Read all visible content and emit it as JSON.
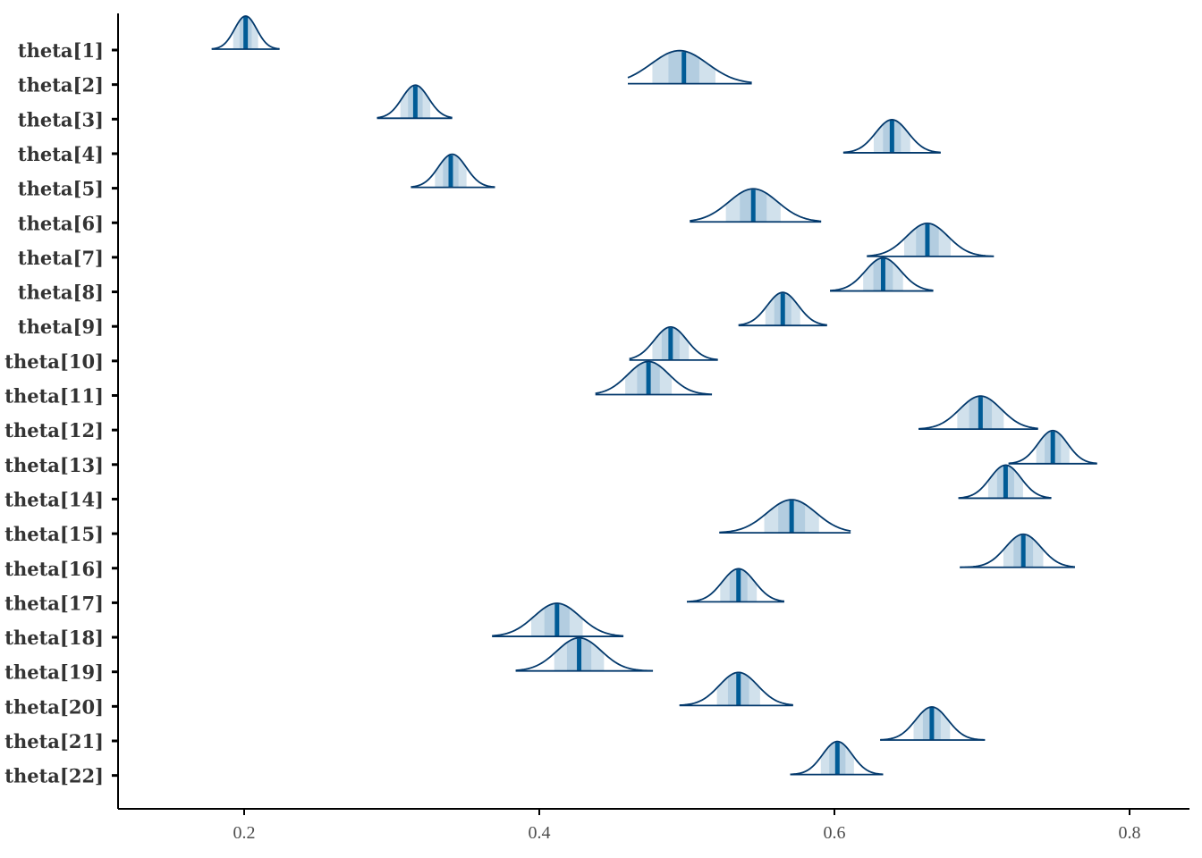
{
  "chart_data": {
    "type": "ridgeline",
    "title": "",
    "xlabel": "",
    "ylabel": "",
    "xlim": [
      0.115,
      0.84
    ],
    "x_ticks": [
      0.2,
      0.4,
      0.6,
      0.8
    ],
    "x_tick_labels": [
      "0.2",
      "0.4",
      "0.6",
      "0.8"
    ],
    "grid": false,
    "legend": "none",
    "colors": {
      "outline": "#03396c",
      "median_line": "#005b96",
      "inner_fill": "#b3cde0",
      "outer_fill": "#d1e1ec",
      "axis": "#000000"
    },
    "series": [
      {
        "name": "theta[1]",
        "median": 0.201,
        "mode": 0.201,
        "sd": 0.0075,
        "lower": 0.178,
        "upper": 0.224
      },
      {
        "name": "theta[2]",
        "median": 0.498,
        "mode": 0.495,
        "sd": 0.019,
        "lower": 0.46,
        "upper": 0.544
      },
      {
        "name": "theta[3]",
        "median": 0.316,
        "mode": 0.316,
        "sd": 0.009,
        "lower": 0.29,
        "upper": 0.341
      },
      {
        "name": "theta[4]",
        "median": 0.639,
        "mode": 0.639,
        "sd": 0.011,
        "lower": 0.606,
        "upper": 0.672
      },
      {
        "name": "theta[5]",
        "median": 0.34,
        "mode": 0.341,
        "sd": 0.0095,
        "lower": 0.313,
        "upper": 0.37
      },
      {
        "name": "theta[6]",
        "median": 0.545,
        "mode": 0.545,
        "sd": 0.0165,
        "lower": 0.502,
        "upper": 0.591
      },
      {
        "name": "theta[7]",
        "median": 0.663,
        "mode": 0.663,
        "sd": 0.014,
        "lower": 0.622,
        "upper": 0.708
      },
      {
        "name": "theta[8]",
        "median": 0.633,
        "mode": 0.633,
        "sd": 0.012,
        "lower": 0.597,
        "upper": 0.667
      },
      {
        "name": "theta[9]",
        "median": 0.565,
        "mode": 0.565,
        "sd": 0.0105,
        "lower": 0.535,
        "upper": 0.595
      },
      {
        "name": "theta[10]",
        "median": 0.489,
        "mode": 0.489,
        "sd": 0.011,
        "lower": 0.461,
        "upper": 0.521
      },
      {
        "name": "theta[11]",
        "median": 0.474,
        "mode": 0.474,
        "sd": 0.014,
        "lower": 0.438,
        "upper": 0.517
      },
      {
        "name": "theta[12]",
        "median": 0.699,
        "mode": 0.699,
        "sd": 0.014,
        "lower": 0.657,
        "upper": 0.738
      },
      {
        "name": "theta[13]",
        "median": 0.748,
        "mode": 0.748,
        "sd": 0.01,
        "lower": 0.718,
        "upper": 0.778
      },
      {
        "name": "theta[14]",
        "median": 0.716,
        "mode": 0.716,
        "sd": 0.0105,
        "lower": 0.684,
        "upper": 0.747
      },
      {
        "name": "theta[15]",
        "median": 0.571,
        "mode": 0.571,
        "sd": 0.0165,
        "lower": 0.522,
        "upper": 0.611
      },
      {
        "name": "theta[16]",
        "median": 0.728,
        "mode": 0.728,
        "sd": 0.012,
        "lower": 0.685,
        "upper": 0.763
      },
      {
        "name": "theta[17]",
        "median": 0.535,
        "mode": 0.535,
        "sd": 0.011,
        "lower": 0.5,
        "upper": 0.566
      },
      {
        "name": "theta[18]",
        "median": 0.412,
        "mode": 0.412,
        "sd": 0.0155,
        "lower": 0.368,
        "upper": 0.457
      },
      {
        "name": "theta[19]",
        "median": 0.427,
        "mode": 0.427,
        "sd": 0.015,
        "lower": 0.384,
        "upper": 0.477
      },
      {
        "name": "theta[20]",
        "median": 0.535,
        "mode": 0.535,
        "sd": 0.013,
        "lower": 0.495,
        "upper": 0.572
      },
      {
        "name": "theta[21]",
        "median": 0.666,
        "mode": 0.666,
        "sd": 0.011,
        "lower": 0.631,
        "upper": 0.702
      },
      {
        "name": "theta[22]",
        "median": 0.602,
        "mode": 0.602,
        "sd": 0.01,
        "lower": 0.57,
        "upper": 0.633
      }
    ]
  }
}
